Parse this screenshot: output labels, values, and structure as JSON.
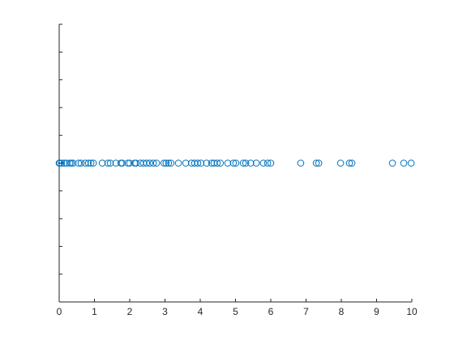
{
  "chart_data": {
    "type": "scatter",
    "color": "#0072bd",
    "x": [
      0,
      0.02,
      0.07,
      0.14,
      0.21,
      0.3,
      0.34,
      0.39,
      0.55,
      0.62,
      0.74,
      0.83,
      0.9,
      0.97,
      1.22,
      1.38,
      1.45,
      1.61,
      1.75,
      1.79,
      1.95,
      2.0,
      2.14,
      2.18,
      2.3,
      2.39,
      2.48,
      2.57,
      2.67,
      2.76,
      2.97,
      3.03,
      3.1,
      3.17,
      3.38,
      3.59,
      3.75,
      3.84,
      3.93,
      4.02,
      4.18,
      4.32,
      4.39,
      4.48,
      4.57,
      4.78,
      4.94,
      5.01,
      5.22,
      5.29,
      5.43,
      5.59,
      5.79,
      5.91,
      6.0,
      6.85,
      7.29,
      7.36,
      7.98,
      8.23,
      8.3,
      9.45,
      9.77,
      9.98
    ],
    "y": [
      0,
      0,
      0,
      0,
      0,
      0,
      0,
      0,
      0,
      0,
      0,
      0,
      0,
      0,
      0,
      0,
      0,
      0,
      0,
      0,
      0,
      0,
      0,
      0,
      0,
      0,
      0,
      0,
      0,
      0,
      0,
      0,
      0,
      0,
      0,
      0,
      0,
      0,
      0,
      0,
      0,
      0,
      0,
      0,
      0,
      0,
      0,
      0,
      0,
      0,
      0,
      0,
      0,
      0,
      0,
      0,
      0,
      0,
      0,
      0,
      0,
      0,
      0,
      0
    ],
    "xlim": [
      0,
      10
    ],
    "xticks": [
      0,
      1,
      2,
      3,
      4,
      5,
      6,
      7,
      8,
      9,
      10
    ],
    "ylim": [
      -1,
      1
    ],
    "yticks": [
      -1,
      -0.8,
      -0.6,
      -0.4,
      -0.2,
      0,
      0.2,
      0.4,
      0.6,
      0.8,
      1
    ]
  }
}
